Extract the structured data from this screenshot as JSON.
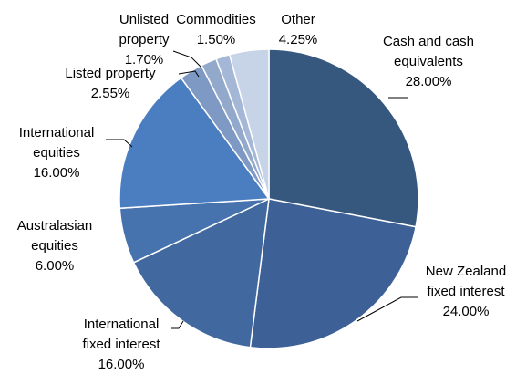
{
  "chart_data": {
    "type": "pie",
    "legend": "none",
    "slices": [
      {
        "name": "Cash and cash equivalents",
        "label_lines": [
          "Cash and cash",
          "equivalents"
        ],
        "percent_label": "28.00%",
        "value": 28.0,
        "color": "#36587f"
      },
      {
        "name": "New Zealand fixed interest",
        "label_lines": [
          "New Zealand",
          "fixed interest"
        ],
        "percent_label": "24.00%",
        "value": 24.0,
        "color": "#3d6197"
      },
      {
        "name": "International fixed interest",
        "label_lines": [
          "International",
          "fixed interest"
        ],
        "percent_label": "16.00%",
        "value": 16.0,
        "color": "#41699f"
      },
      {
        "name": "Australasian equities",
        "label_lines": [
          "Australasian",
          "equities"
        ],
        "percent_label": "6.00%",
        "value": 6.0,
        "color": "#4672ae"
      },
      {
        "name": "International equities",
        "label_lines": [
          "International",
          "equities"
        ],
        "percent_label": "16.00%",
        "value": 16.0,
        "color": "#4b7ec0"
      },
      {
        "name": "Listed property",
        "label_lines": [
          "Listed property"
        ],
        "percent_label": "2.55%",
        "value": 2.55,
        "color": "#7e9ac4"
      },
      {
        "name": "Unlisted property",
        "label_lines": [
          "Unlisted",
          "property"
        ],
        "percent_label": "1.70%",
        "value": 1.7,
        "color": "#93a9cc"
      },
      {
        "name": "Commodities",
        "label_lines": [
          "Commodities"
        ],
        "percent_label": "1.50%",
        "value": 1.5,
        "color": "#a5b7d6"
      },
      {
        "name": "Other",
        "label_lines": [
          "Other"
        ],
        "percent_label": "4.25%",
        "value": 4.25,
        "color": "#c7d3e6"
      }
    ]
  }
}
